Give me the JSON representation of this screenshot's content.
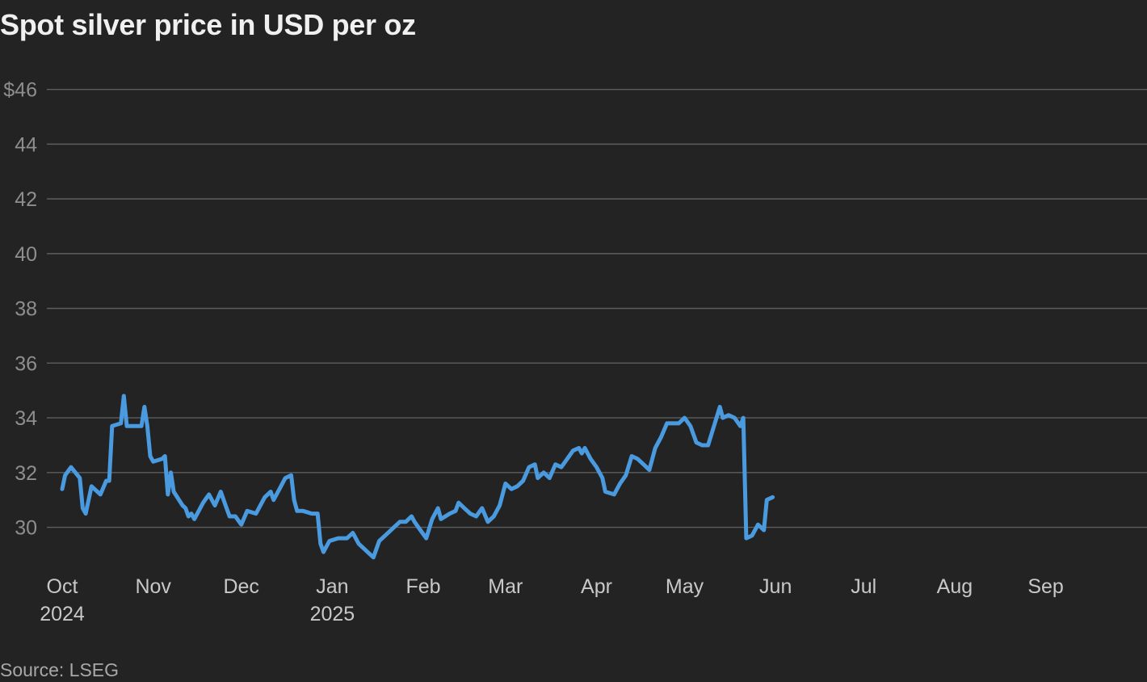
{
  "chart_data": {
    "type": "line",
    "title": "Spot silver price in USD per oz",
    "source": "Source: LSEG",
    "xlabel": "",
    "ylabel": "",
    "ylim": [
      28.6,
      47.2
    ],
    "xlim": [
      "2024-10-01",
      "2025-09-30"
    ],
    "grid": true,
    "y_ticks": [
      {
        "value": 30,
        "label": "30"
      },
      {
        "value": 32,
        "label": "32"
      },
      {
        "value": 34,
        "label": "34"
      },
      {
        "value": 36,
        "label": "36"
      },
      {
        "value": 38,
        "label": "38"
      },
      {
        "value": 40,
        "label": "40"
      },
      {
        "value": 42,
        "label": "42"
      },
      {
        "value": 44,
        "label": "44"
      },
      {
        "value": 46,
        "label": "$46"
      }
    ],
    "x_ticks": [
      {
        "date": "2024-10-01",
        "label": "Oct",
        "sublabel": "2024"
      },
      {
        "date": "2024-11-01",
        "label": "Nov",
        "sublabel": ""
      },
      {
        "date": "2024-12-01",
        "label": "Dec",
        "sublabel": ""
      },
      {
        "date": "2025-01-01",
        "label": "Jan",
        "sublabel": "2025"
      },
      {
        "date": "2025-02-01",
        "label": "Feb",
        "sublabel": ""
      },
      {
        "date": "2025-03-01",
        "label": "Mar",
        "sublabel": ""
      },
      {
        "date": "2025-04-01",
        "label": "Apr",
        "sublabel": ""
      },
      {
        "date": "2025-05-01",
        "label": "May",
        "sublabel": ""
      },
      {
        "date": "2025-06-01",
        "label": "Jun",
        "sublabel": ""
      },
      {
        "date": "2025-07-01",
        "label": "Jul",
        "sublabel": ""
      },
      {
        "date": "2025-08-01",
        "label": "Aug",
        "sublabel": ""
      },
      {
        "date": "2025-09-01",
        "label": "Sep",
        "sublabel": ""
      }
    ],
    "colors": {
      "line": "#4a9ae0",
      "grid": "#5e5e5e",
      "background": "#232323"
    },
    "series": [
      {
        "points": [
          [
            "2024-10-01",
            31.4
          ],
          [
            "2024-10-02",
            31.9
          ],
          [
            "2024-10-04",
            32.2
          ],
          [
            "2024-10-07",
            31.8
          ],
          [
            "2024-10-08",
            30.7
          ],
          [
            "2024-10-09",
            30.5
          ],
          [
            "2024-10-11",
            31.5
          ],
          [
            "2024-10-14",
            31.2
          ],
          [
            "2024-10-16",
            31.7
          ],
          [
            "2024-10-17",
            31.7
          ],
          [
            "2024-10-18",
            33.7
          ],
          [
            "2024-10-21",
            33.8
          ],
          [
            "2024-10-22",
            34.8
          ],
          [
            "2024-10-23",
            33.7
          ],
          [
            "2024-10-25",
            33.7
          ],
          [
            "2024-10-28",
            33.7
          ],
          [
            "2024-10-29",
            34.4
          ],
          [
            "2024-10-30",
            33.7
          ],
          [
            "2024-10-31",
            32.6
          ],
          [
            "2024-11-01",
            32.4
          ],
          [
            "2024-11-04",
            32.5
          ],
          [
            "2024-11-05",
            32.6
          ],
          [
            "2024-11-06",
            31.2
          ],
          [
            "2024-11-07",
            32.0
          ],
          [
            "2024-11-08",
            31.3
          ],
          [
            "2024-11-11",
            30.8
          ],
          [
            "2024-11-12",
            30.7
          ],
          [
            "2024-11-13",
            30.4
          ],
          [
            "2024-11-14",
            30.5
          ],
          [
            "2024-11-15",
            30.3
          ],
          [
            "2024-11-18",
            30.9
          ],
          [
            "2024-11-20",
            31.2
          ],
          [
            "2024-11-22",
            30.8
          ],
          [
            "2024-11-24",
            31.3
          ],
          [
            "2024-11-26",
            30.7
          ],
          [
            "2024-11-27",
            30.4
          ],
          [
            "2024-11-29",
            30.4
          ],
          [
            "2024-12-01",
            30.1
          ],
          [
            "2024-12-03",
            30.6
          ],
          [
            "2024-12-06",
            30.5
          ],
          [
            "2024-12-09",
            31.1
          ],
          [
            "2024-12-11",
            31.3
          ],
          [
            "2024-12-12",
            31.0
          ],
          [
            "2024-12-14",
            31.4
          ],
          [
            "2024-12-16",
            31.8
          ],
          [
            "2024-12-18",
            31.9
          ],
          [
            "2024-12-19",
            31.0
          ],
          [
            "2024-12-20",
            30.6
          ],
          [
            "2024-12-22",
            30.6
          ],
          [
            "2024-12-25",
            30.5
          ],
          [
            "2024-12-27",
            30.5
          ],
          [
            "2024-12-28",
            29.4
          ],
          [
            "2024-12-29",
            29.1
          ],
          [
            "2024-12-31",
            29.5
          ],
          [
            "2025-01-03",
            29.6
          ],
          [
            "2025-01-06",
            29.6
          ],
          [
            "2025-01-08",
            29.8
          ],
          [
            "2025-01-10",
            29.4
          ],
          [
            "2025-01-13",
            29.1
          ],
          [
            "2025-01-15",
            28.9
          ],
          [
            "2025-01-17",
            29.5
          ],
          [
            "2025-01-20",
            29.8
          ],
          [
            "2025-01-22",
            30.0
          ],
          [
            "2025-01-24",
            30.2
          ],
          [
            "2025-01-26",
            30.2
          ],
          [
            "2025-01-28",
            30.4
          ],
          [
            "2025-01-29",
            30.2
          ],
          [
            "2025-01-31",
            29.9
          ],
          [
            "2025-02-02",
            29.6
          ],
          [
            "2025-02-04",
            30.3
          ],
          [
            "2025-02-06",
            30.7
          ],
          [
            "2025-02-07",
            30.3
          ],
          [
            "2025-02-10",
            30.5
          ],
          [
            "2025-02-12",
            30.6
          ],
          [
            "2025-02-13",
            30.9
          ],
          [
            "2025-02-15",
            30.7
          ],
          [
            "2025-02-17",
            30.5
          ],
          [
            "2025-02-19",
            30.4
          ],
          [
            "2025-02-21",
            30.7
          ],
          [
            "2025-02-23",
            30.2
          ],
          [
            "2025-02-25",
            30.4
          ],
          [
            "2025-02-27",
            30.8
          ],
          [
            "2025-03-01",
            31.6
          ],
          [
            "2025-03-03",
            31.4
          ],
          [
            "2025-03-05",
            31.5
          ],
          [
            "2025-03-07",
            31.7
          ],
          [
            "2025-03-09",
            32.2
          ],
          [
            "2025-03-11",
            32.3
          ],
          [
            "2025-03-12",
            31.8
          ],
          [
            "2025-03-14",
            32.0
          ],
          [
            "2025-03-16",
            31.8
          ],
          [
            "2025-03-18",
            32.3
          ],
          [
            "2025-03-20",
            32.2
          ],
          [
            "2025-03-22",
            32.5
          ],
          [
            "2025-03-24",
            32.8
          ],
          [
            "2025-03-26",
            32.9
          ],
          [
            "2025-03-27",
            32.7
          ],
          [
            "2025-03-28",
            32.9
          ],
          [
            "2025-03-30",
            32.5
          ],
          [
            "2025-04-01",
            32.2
          ],
          [
            "2025-04-03",
            31.8
          ],
          [
            "2025-04-04",
            31.3
          ],
          [
            "2025-04-07",
            31.2
          ],
          [
            "2025-04-09",
            31.6
          ],
          [
            "2025-04-11",
            31.9
          ],
          [
            "2025-04-13",
            32.6
          ],
          [
            "2025-04-15",
            32.5
          ],
          [
            "2025-04-17",
            32.3
          ],
          [
            "2025-04-19",
            32.1
          ],
          [
            "2025-04-21",
            32.9
          ],
          [
            "2025-04-23",
            33.3
          ],
          [
            "2025-04-25",
            33.8
          ],
          [
            "2025-04-27",
            33.8
          ],
          [
            "2025-04-29",
            33.8
          ],
          [
            "2025-05-01",
            34.0
          ],
          [
            "2025-05-03",
            33.7
          ],
          [
            "2025-05-05",
            33.1
          ],
          [
            "2025-05-07",
            33.0
          ],
          [
            "2025-05-09",
            33.0
          ],
          [
            "2025-05-11",
            33.7
          ],
          [
            "2025-05-13",
            34.4
          ],
          [
            "2025-05-14",
            34.0
          ],
          [
            "2025-05-16",
            34.1
          ],
          [
            "2025-05-18",
            34.0
          ],
          [
            "2025-05-20",
            33.7
          ],
          [
            "2025-05-21",
            34.0
          ],
          [
            "2025-05-22",
            29.6
          ],
          [
            "2025-05-24",
            29.7
          ],
          [
            "2025-05-26",
            30.1
          ],
          [
            "2025-05-28",
            29.9
          ],
          [
            "2025-05-29",
            31.0
          ],
          [
            "2025-05-31",
            31.1
          ]
        ]
      }
    ]
  }
}
